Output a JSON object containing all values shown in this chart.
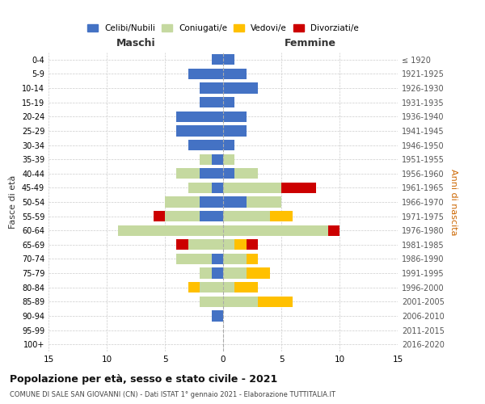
{
  "age_groups": [
    "0-4",
    "5-9",
    "10-14",
    "15-19",
    "20-24",
    "25-29",
    "30-34",
    "35-39",
    "40-44",
    "45-49",
    "50-54",
    "55-59",
    "60-64",
    "65-69",
    "70-74",
    "75-79",
    "80-84",
    "85-89",
    "90-94",
    "95-99",
    "100+"
  ],
  "birth_years": [
    "2016-2020",
    "2011-2015",
    "2006-2010",
    "2001-2005",
    "1996-2000",
    "1991-1995",
    "1986-1990",
    "1981-1985",
    "1976-1980",
    "1971-1975",
    "1966-1970",
    "1961-1965",
    "1956-1960",
    "1951-1955",
    "1946-1950",
    "1941-1945",
    "1936-1940",
    "1931-1935",
    "1926-1930",
    "1921-1925",
    "≤ 1920"
  ],
  "male": {
    "celibi": [
      1,
      3,
      2,
      2,
      4,
      4,
      3,
      1,
      2,
      1,
      2,
      2,
      0,
      0,
      1,
      1,
      0,
      0,
      1,
      0,
      0
    ],
    "coniugati": [
      0,
      0,
      0,
      0,
      0,
      0,
      0,
      1,
      2,
      2,
      3,
      3,
      9,
      3,
      3,
      1,
      2,
      2,
      0,
      0,
      0
    ],
    "vedovi": [
      0,
      0,
      0,
      0,
      0,
      0,
      0,
      0,
      0,
      0,
      0,
      0,
      0,
      0,
      0,
      0,
      1,
      0,
      0,
      0,
      0
    ],
    "divorziati": [
      0,
      0,
      0,
      0,
      0,
      0,
      0,
      0,
      0,
      0,
      0,
      1,
      0,
      1,
      0,
      0,
      0,
      0,
      0,
      0,
      0
    ]
  },
  "female": {
    "nubili": [
      1,
      2,
      3,
      1,
      2,
      2,
      1,
      0,
      1,
      0,
      2,
      0,
      0,
      0,
      0,
      0,
      0,
      0,
      0,
      0,
      0
    ],
    "coniugate": [
      0,
      0,
      0,
      0,
      0,
      0,
      0,
      1,
      2,
      5,
      3,
      4,
      9,
      1,
      2,
      2,
      1,
      3,
      0,
      0,
      0
    ],
    "vedove": [
      0,
      0,
      0,
      0,
      0,
      0,
      0,
      0,
      0,
      0,
      0,
      2,
      0,
      1,
      1,
      2,
      2,
      3,
      0,
      0,
      0
    ],
    "divorziate": [
      0,
      0,
      0,
      0,
      0,
      0,
      0,
      0,
      0,
      3,
      0,
      0,
      1,
      1,
      0,
      0,
      0,
      0,
      0,
      0,
      0
    ]
  },
  "colors": {
    "celibi": "#4472c4",
    "coniugati": "#c5d9a0",
    "vedovi": "#ffc000",
    "divorziati": "#cc0000"
  },
  "title": "Popolazione per età, sesso e stato civile - 2021",
  "subtitle": "COMUNE DI SALE SAN GIOVANNI (CN) - Dati ISTAT 1° gennaio 2021 - Elaborazione TUTTITALIA.IT",
  "xlabel_left": "Maschi",
  "xlabel_right": "Femmine",
  "ylabel_left": "Fasce di età",
  "ylabel_right": "Anni di nascita",
  "xlim": 15,
  "legend_labels": [
    "Celibi/Nubili",
    "Coniugati/e",
    "Vedovi/e",
    "Divorziati/e"
  ],
  "background_color": "#ffffff"
}
